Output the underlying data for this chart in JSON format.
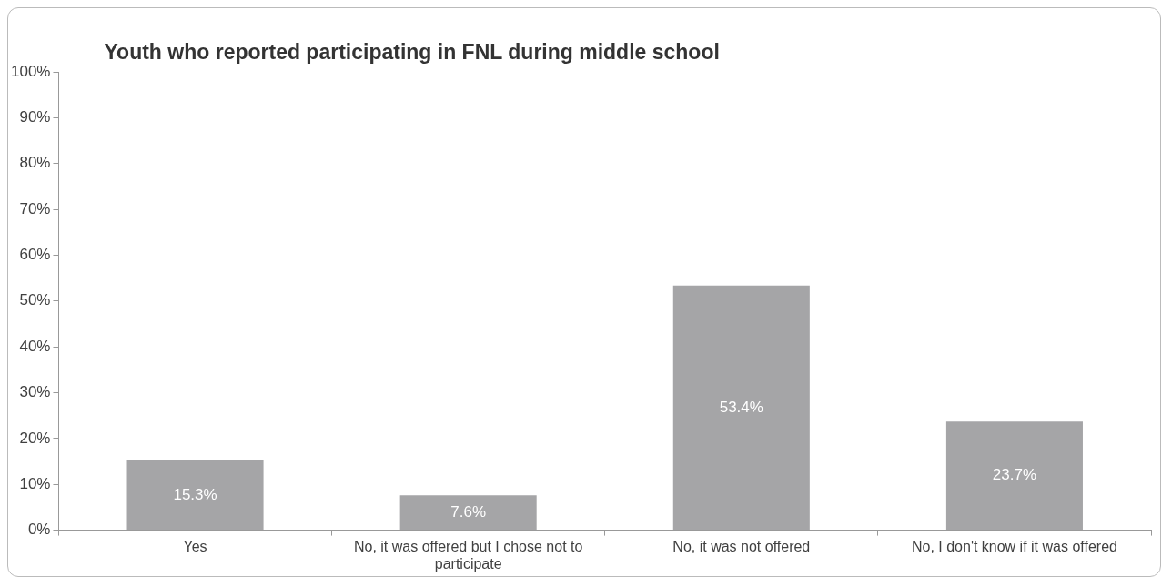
{
  "chart_data": {
    "type": "bar",
    "title": "Youth who reported participating in FNL during middle school",
    "categories": [
      "Yes",
      "No, it was offered but I chose not to participate",
      "No, it was not offered",
      "No, I don't know if it was offered"
    ],
    "values": [
      15.3,
      7.6,
      53.4,
      23.7
    ],
    "color": "#a5a5a7",
    "value_labels": [
      "15.3%",
      "7.6%",
      "53.4%",
      "23.7%"
    ],
    "ylim": [
      0,
      100
    ],
    "yticks": [
      {
        "value": 0,
        "label": "0%"
      },
      {
        "value": 10,
        "label": "10%"
      },
      {
        "value": 20,
        "label": "20%"
      },
      {
        "value": 30,
        "label": "30%"
      },
      {
        "value": 40,
        "label": "40%"
      },
      {
        "value": 50,
        "label": "50%"
      },
      {
        "value": 60,
        "label": "60%"
      },
      {
        "value": 70,
        "label": "70%"
      },
      {
        "value": 80,
        "label": "80%"
      },
      {
        "value": 90,
        "label": "90%"
      },
      {
        "value": 100,
        "label": "100%"
      }
    ],
    "grid": false,
    "legend": false
  }
}
